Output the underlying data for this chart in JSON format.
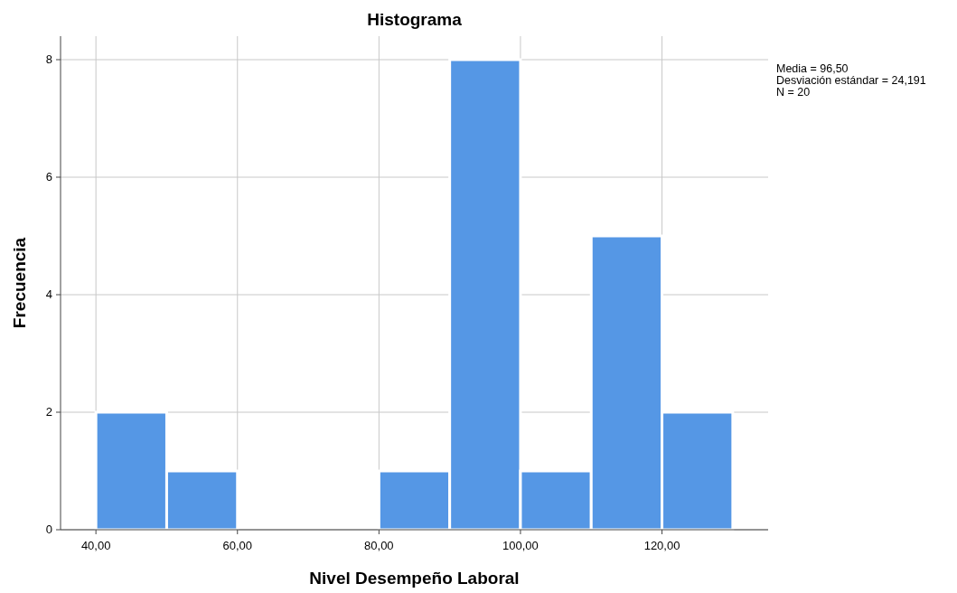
{
  "chart_data": {
    "type": "histogram",
    "title": "Histograma",
    "xlabel": "Nivel Desempeño Laboral",
    "ylabel": "Frecuencia",
    "bins": [
      40,
      50,
      60,
      70,
      80,
      90,
      100,
      110,
      120,
      130
    ],
    "values": [
      2,
      1,
      0,
      0,
      1,
      8,
      1,
      5,
      2
    ],
    "color": "#5597e5",
    "xlim": [
      35,
      135
    ],
    "xticks": [
      {
        "value": 40,
        "label": "40,00"
      },
      {
        "value": 60,
        "label": "60,00"
      },
      {
        "value": 80,
        "label": "80,00"
      },
      {
        "value": 100,
        "label": "100,00"
      },
      {
        "value": 120,
        "label": "120,00"
      }
    ],
    "ylim": [
      0,
      8.4
    ],
    "yticks": [
      0,
      2,
      4,
      6,
      8
    ],
    "grid": true,
    "annotations": [
      "Media = 96,50",
      "Desviación estándar = 24,191",
      "N = 20"
    ]
  }
}
